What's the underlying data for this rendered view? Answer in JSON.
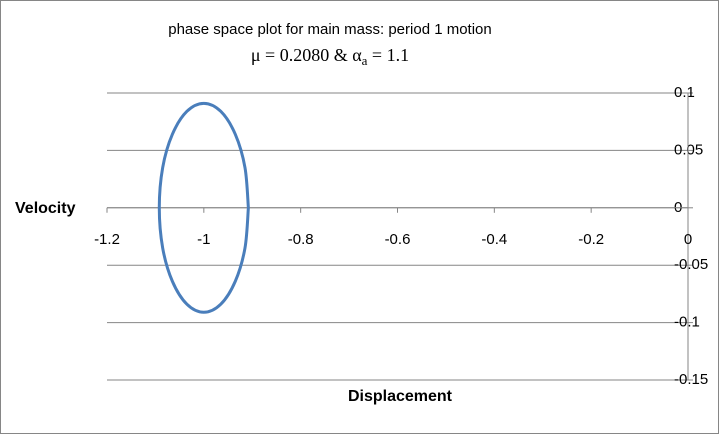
{
  "chart_data": {
    "type": "line",
    "title": "phase space plot for main mass: period 1 motion",
    "subtitle": [
      "μ = 0.2080 & α",
      "a",
      " = 1.1"
    ],
    "x_label": "Displacement",
    "y_label": "Velocity",
    "xlim": [
      -1.2,
      0
    ],
    "ylim": [
      -0.15,
      0.1
    ],
    "xticks": [
      -1.2,
      -1,
      -0.8,
      -0.6,
      -0.4,
      -0.2,
      0
    ],
    "yticks": [
      0.1,
      0.05,
      0,
      -0.05,
      -0.1,
      -0.15
    ],
    "grid": true,
    "series": [
      {
        "color": "#4a7ebb",
        "x": [
          -0.908,
          -0.915,
          -0.935,
          -0.965,
          -1,
          -1.035,
          -1.065,
          -1.085,
          -1.092,
          -1.085,
          -1.065,
          -1.035,
          -1,
          -0.965,
          -0.935,
          -0.915,
          -0.908
        ],
        "values": [
          0,
          0.035,
          0.064,
          0.084,
          0.091,
          0.084,
          0.064,
          0.035,
          0,
          -0.035,
          -0.064,
          -0.084,
          -0.091,
          -0.084,
          -0.064,
          -0.035,
          0
        ]
      }
    ]
  }
}
